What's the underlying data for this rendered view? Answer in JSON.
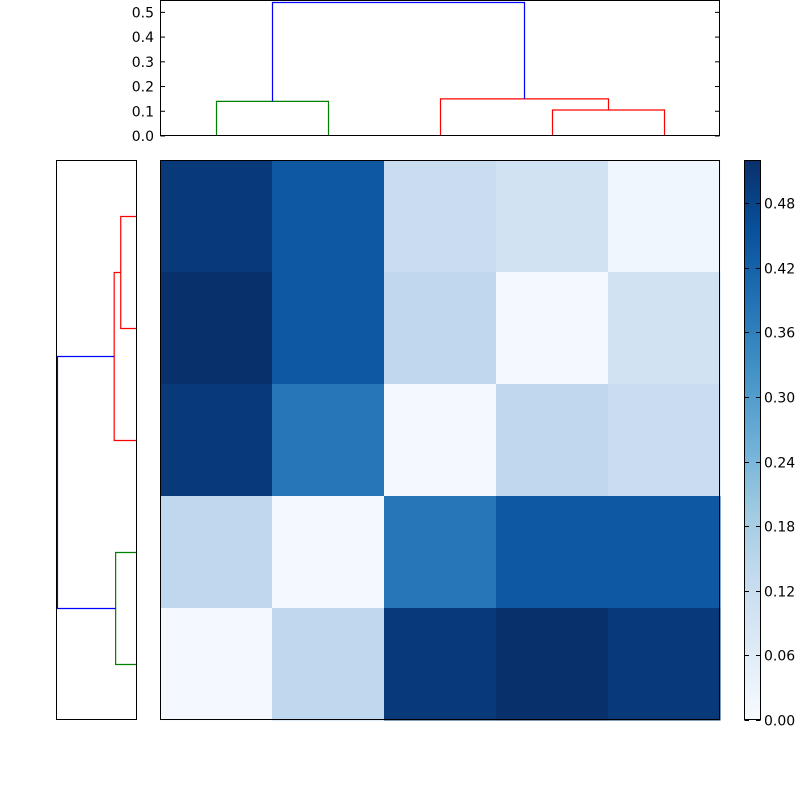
{
  "chart_data": [
    {
      "type": "dendrogram",
      "orientation": "top",
      "ylim": [
        0,
        0.55
      ],
      "yticks": [
        "0.0",
        "0.1",
        "0.2",
        "0.3",
        "0.4",
        "0.5"
      ],
      "leaf_order": [
        1,
        2,
        3,
        4,
        5
      ],
      "links": [
        {
          "x": [
            1.5,
            1.5,
            2.5,
            2.5
          ],
          "y": [
            0.0,
            0.14,
            0.14,
            0.0
          ],
          "color": "#008000"
        },
        {
          "x": [
            4.5,
            4.5,
            5.5,
            5.5
          ],
          "y": [
            0.0,
            0.105,
            0.105,
            0.0
          ],
          "color": "#ff0000"
        },
        {
          "x": [
            3.5,
            3.5,
            5.0,
            5.0
          ],
          "y": [
            0.0,
            0.15,
            0.15,
            0.105
          ],
          "color": "#ff0000"
        },
        {
          "x": [
            2.0,
            2.0,
            4.25,
            4.25
          ],
          "y": [
            0.14,
            0.54,
            0.54,
            0.15
          ],
          "color": "#0000ff"
        }
      ]
    },
    {
      "type": "dendrogram",
      "orientation": "left",
      "xlim": [
        0,
        0.55
      ],
      "links": [
        {
          "y": [
            1.5,
            1.5,
            2.5,
            2.5
          ],
          "x": [
            0.0,
            0.14,
            0.14,
            0.0
          ],
          "color": "#008000"
        },
        {
          "y": [
            4.5,
            4.5,
            5.5,
            5.5
          ],
          "x": [
            0.0,
            0.105,
            0.105,
            0.0
          ],
          "color": "#ff0000"
        },
        {
          "y": [
            3.5,
            3.5,
            5.0,
            5.0
          ],
          "x": [
            0.0,
            0.15,
            0.15,
            0.105
          ],
          "color": "#ff0000"
        },
        {
          "y": [
            2.0,
            2.0,
            4.25,
            4.25
          ],
          "x": [
            0.14,
            0.54,
            0.54,
            0.15
          ],
          "color": "#0000ff"
        }
      ]
    },
    {
      "type": "heatmap",
      "colormap": "Blues",
      "vmin": 0.0,
      "vmax": 0.52,
      "values": [
        [
          0.5,
          0.44,
          0.12,
          0.1,
          0.02
        ],
        [
          0.52,
          0.44,
          0.14,
          0.01,
          0.1
        ],
        [
          0.5,
          0.38,
          0.01,
          0.14,
          0.12
        ],
        [
          0.14,
          0.01,
          0.38,
          0.44,
          0.44
        ],
        [
          0.01,
          0.14,
          0.5,
          0.52,
          0.5
        ]
      ],
      "colorbar": {
        "ticks": [
          "0.00",
          "0.06",
          "0.12",
          "0.18",
          "0.24",
          "0.30",
          "0.36",
          "0.42",
          "0.48"
        ]
      }
    }
  ]
}
